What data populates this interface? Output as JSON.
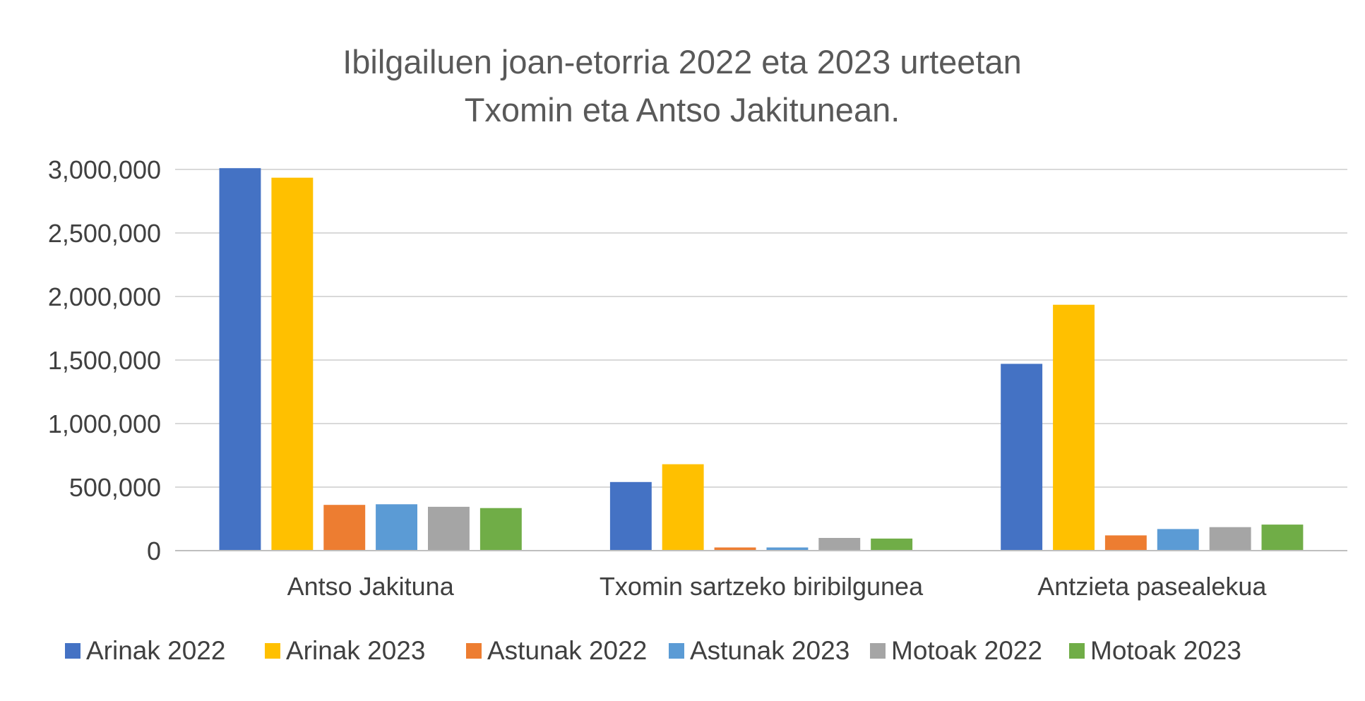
{
  "chart_data": {
    "type": "bar",
    "title": [
      "Ibilgailuen joan-etorria 2022 eta 2023 urteetan",
      "Txomin eta Antso Jakitunean."
    ],
    "categories": [
      "Antso Jakituna",
      "Txomin sartzeko biribilgunea",
      "Antzieta pasealekua"
    ],
    "ylim": [
      0,
      3000000
    ],
    "yticks": [
      0,
      500000,
      1000000,
      1500000,
      2000000,
      2500000,
      3000000
    ],
    "ytick_labels": [
      "0",
      "500,000",
      "1,000,000",
      "1,500,000",
      "2,000,000",
      "2,500,000",
      "3,000,000"
    ],
    "grid": true,
    "legend_position": "bottom",
    "series": [
      {
        "name": "Arinak 2022",
        "color": "#4472C4",
        "values": [
          3010000,
          540000,
          1470000
        ]
      },
      {
        "name": "Arinak 2023",
        "color": "#FFC000",
        "values": [
          2935000,
          680000,
          1935000
        ]
      },
      {
        "name": "Astunak 2022",
        "color": "#ED7D31",
        "values": [
          360000,
          25000,
          120000
        ]
      },
      {
        "name": "Astunak 2023",
        "color": "#5B9BD5",
        "values": [
          365000,
          25000,
          170000
        ]
      },
      {
        "name": "Motoak 2022",
        "color": "#A5A5A5",
        "values": [
          345000,
          100000,
          185000
        ]
      },
      {
        "name": "Motoak 2023",
        "color": "#70AD47",
        "values": [
          335000,
          95000,
          205000
        ]
      }
    ]
  }
}
